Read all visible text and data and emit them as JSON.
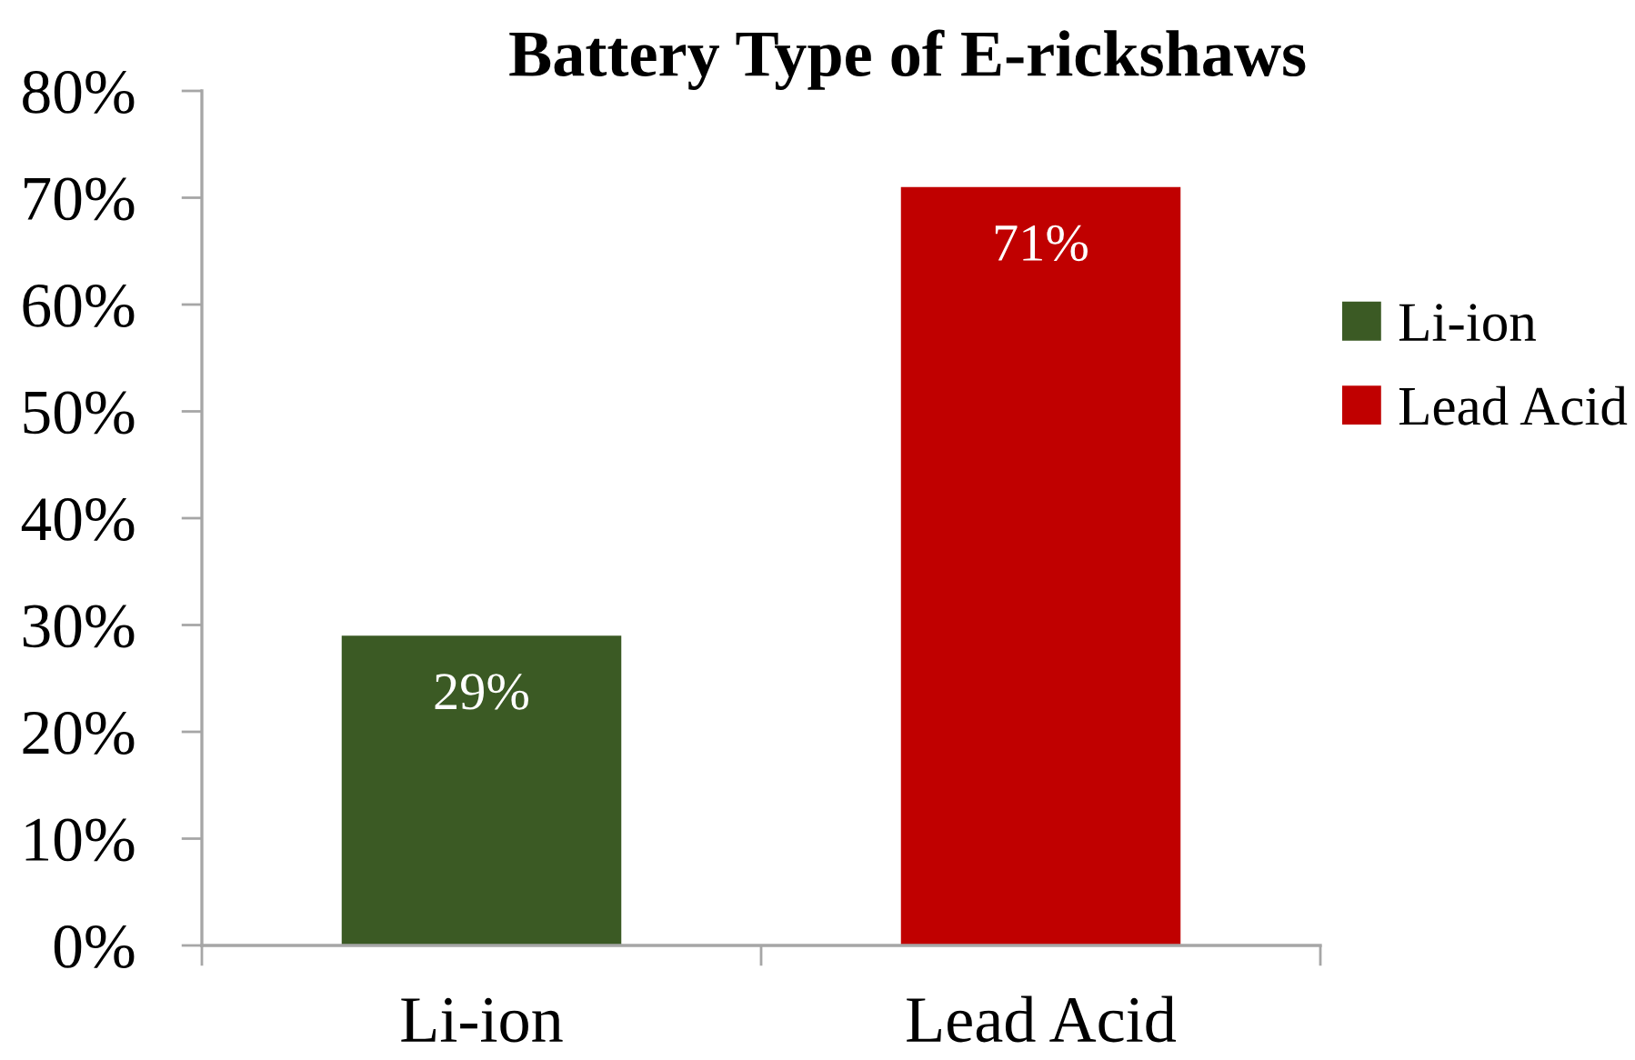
{
  "chart_data": {
    "type": "bar",
    "title": "Battery Type of E-rickshaws",
    "categories": [
      "Li-ion",
      "Lead Acid"
    ],
    "series": [
      {
        "name": "Li-ion",
        "color": "#3b5a24",
        "values": [
          29,
          null
        ],
        "value_labels": [
          "29%",
          null
        ]
      },
      {
        "name": "Lead Acid",
        "color": "#c00000",
        "values": [
          null,
          71
        ],
        "value_labels": [
          null,
          "71%"
        ]
      }
    ],
    "ylim": [
      0,
      80
    ],
    "yticks": [
      {
        "value": 0,
        "label": "0%"
      },
      {
        "value": 10,
        "label": "10%"
      },
      {
        "value": 20,
        "label": "20%"
      },
      {
        "value": 30,
        "label": "30%"
      },
      {
        "value": 40,
        "label": "40%"
      },
      {
        "value": 50,
        "label": "50%"
      },
      {
        "value": 60,
        "label": "60%"
      },
      {
        "value": 70,
        "label": "70%"
      },
      {
        "value": 80,
        "label": "80%"
      }
    ],
    "legend": "right"
  }
}
